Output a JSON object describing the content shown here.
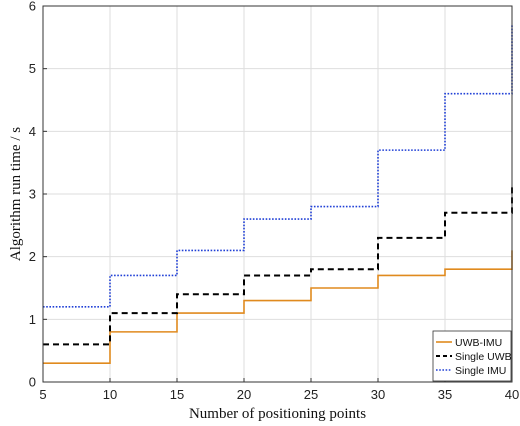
{
  "chart_data": {
    "type": "line",
    "step": "post",
    "title": "",
    "xlabel": "Number of positioning points",
    "ylabel": "Algorithm run time / s",
    "xlim": [
      5,
      40
    ],
    "ylim": [
      0,
      6
    ],
    "xticks": [
      5,
      10,
      15,
      20,
      25,
      30,
      35,
      40
    ],
    "yticks": [
      0,
      1,
      2,
      3,
      4,
      5,
      6
    ],
    "grid": true,
    "legend_position": "bottom-right",
    "x": [
      5,
      10,
      15,
      20,
      25,
      30,
      35,
      40
    ],
    "series": [
      {
        "name": "UWB-IMU",
        "color": "#e08a1e",
        "style": "solid",
        "values": [
          0.3,
          0.8,
          1.1,
          1.3,
          1.5,
          1.7,
          1.8,
          2.1
        ]
      },
      {
        "name": "Single UWB",
        "color": "#000000",
        "style": "dashed",
        "values": [
          0.6,
          1.1,
          1.4,
          1.7,
          1.8,
          2.3,
          2.7,
          3.15
        ]
      },
      {
        "name": "Single IMU",
        "color": "#1f3fd6",
        "style": "dotted",
        "values": [
          1.2,
          1.7,
          2.1,
          2.6,
          2.8,
          3.7,
          4.6,
          5.7
        ]
      }
    ]
  }
}
